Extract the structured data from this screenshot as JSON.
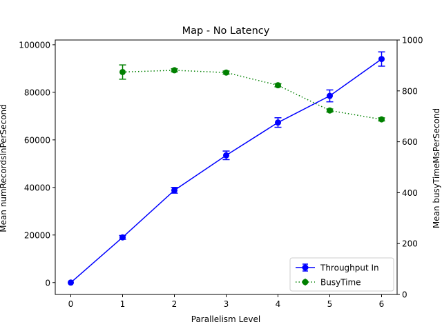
{
  "chart_data": {
    "type": "line",
    "title": "Map - No Latency",
    "xlabel": "Parallelism Level",
    "ylabel_left": "Mean numRecordsInPerSecond",
    "ylabel_right": "Mean busyTimeMsPerSecond",
    "xlim": [
      -0.3,
      6.3
    ],
    "ylim_left": [
      -5000,
      102000
    ],
    "ylim_right": [
      0,
      1000
    ],
    "xticks": [
      "0",
      "1",
      "2",
      "3",
      "4",
      "5",
      "6"
    ],
    "yticks_left": [
      "0",
      "20000",
      "40000",
      "60000",
      "80000",
      "100000"
    ],
    "yticks_right": [
      "0",
      "200",
      "400",
      "600",
      "800",
      "1000"
    ],
    "legend_position": "lower-right",
    "grid": false,
    "series": [
      {
        "name": "Throughput In",
        "axis": "left",
        "color": "#0000ff",
        "line_style": "solid",
        "marker": "circle",
        "x": [
          0,
          1,
          2,
          3,
          4,
          5,
          6
        ],
        "y": [
          0,
          19000,
          38800,
          53500,
          67300,
          78500,
          94000
        ],
        "yerr": [
          0,
          800,
          1200,
          1800,
          2000,
          2500,
          3000
        ]
      },
      {
        "name": "BusyTime",
        "axis": "right",
        "color": "#008000",
        "line_style": "dotted",
        "marker": "circle",
        "x": [
          1,
          2,
          3,
          4,
          5,
          6
        ],
        "y": [
          874,
          881,
          872,
          822,
          723,
          688
        ],
        "yerr": [
          28,
          6,
          6,
          6,
          6,
          6
        ]
      }
    ]
  }
}
